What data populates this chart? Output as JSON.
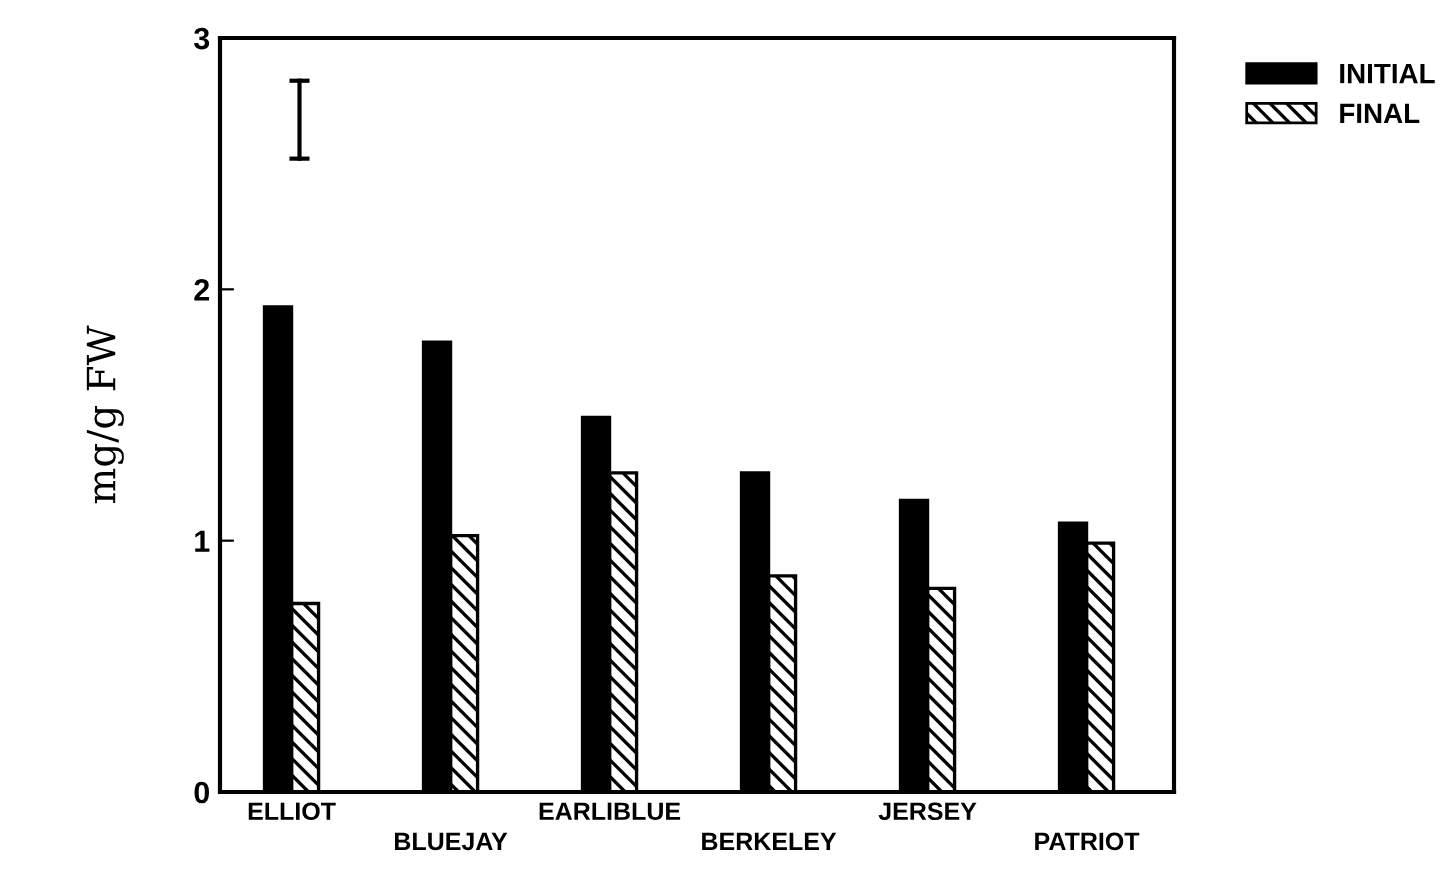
{
  "chart_data": {
    "type": "bar",
    "ylabel": "mg/g FW",
    "categories": [
      "ELLIOT",
      "BLUEJAY",
      "EARLIBLUE",
      "BERKELEY",
      "JERSEY",
      "PATRIOT"
    ],
    "series": [
      {
        "name": "INITIAL",
        "color": "#000000",
        "values": [
          1.93,
          1.79,
          1.49,
          1.27,
          1.16,
          1.07
        ]
      },
      {
        "name": "FINAL",
        "color": "#000000",
        "values": [
          0.75,
          1.02,
          1.27,
          0.86,
          0.81,
          0.99
        ]
      }
    ],
    "ylim": [
      0,
      3
    ],
    "yticks": [
      0,
      1,
      2,
      3
    ],
    "grid": false,
    "legend": "top right"
  }
}
